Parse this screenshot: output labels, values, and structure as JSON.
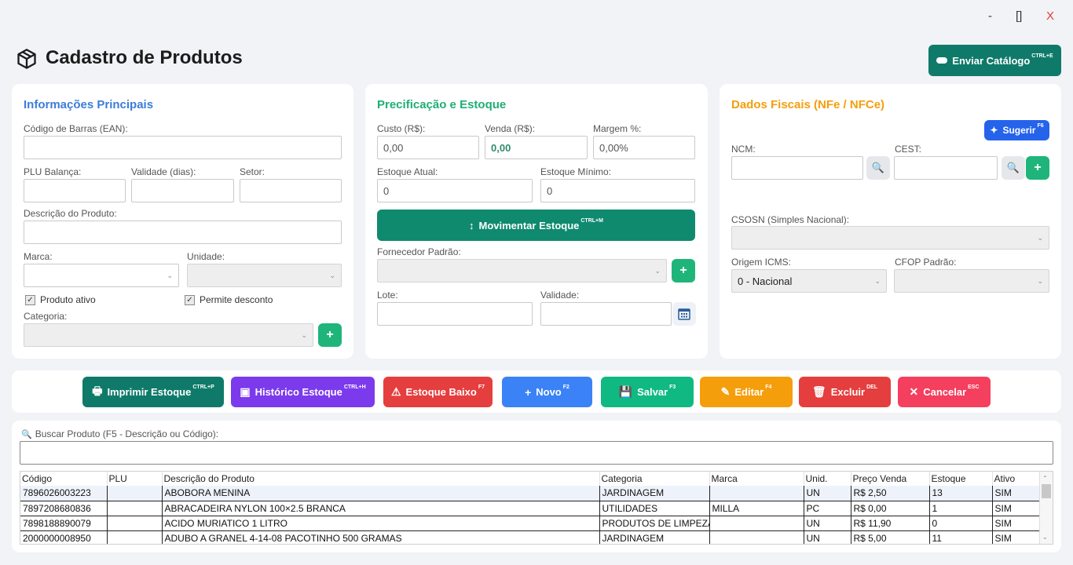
{
  "window": {
    "minimize": "-",
    "maximize": "[]",
    "close": "X"
  },
  "header": {
    "title": "Cadastro de Produtos",
    "icon": "box-icon"
  },
  "catalog_button": {
    "label": "Enviar Catálogo",
    "shortcut": "CTRL+E",
    "color": "#0f7a6a"
  },
  "main_info": {
    "title": "Informações Principais",
    "barcode_label": "Código de Barras (EAN):",
    "barcode_value": "",
    "plu_label": "PLU Balança:",
    "validade_label": "Validade (dias):",
    "setor_label": "Setor:",
    "descricao_label": "Descrição do Produto:",
    "marca_label": "Marca:",
    "unidade_label": "Unidade:",
    "produto_ativo": "Produto ativo",
    "permite_desconto": "Permite desconto",
    "categoria_label": "Categoria:"
  },
  "pricing": {
    "title": "Precificação e Estoque",
    "custo_label": "Custo (R$):",
    "custo_value": "0,00",
    "venda_label": "Venda (R$):",
    "venda_value": "0,00",
    "margem_label": "Margem %:",
    "margem_value": "0,00%",
    "estoque_atual_label": "Estoque Atual:",
    "estoque_atual_value": "0",
    "estoque_minimo_label": "Estoque Mínimo:",
    "estoque_minimo_value": "0",
    "movimentar_label": "Movimentar Estoque",
    "movimentar_shortcut": "CTRL+M",
    "fornecedor_label": "Fornecedor Padrão:",
    "lote_label": "Lote:",
    "validade_label": "Validade:"
  },
  "fiscal": {
    "title": "Dados Fiscais (NFe / NFCe)",
    "sugerir_label": "Sugerir",
    "sugerir_shortcut": "F6",
    "ncm_label": "NCM:",
    "cest_label": "CEST:",
    "csosn_label": "CSOSN (Simples Nacional):",
    "origem_label": "Origem ICMS:",
    "origem_value": "0 - Nacional",
    "cfop_label": "CFOP Padrão:"
  },
  "actions": [
    {
      "label": "Imprimir Estoque",
      "shortcut": "CTRL+P",
      "color": "#0f7a6a",
      "icon": "printer-icon"
    },
    {
      "label": "Histórico Estoque",
      "shortcut": "CTRL+H",
      "color": "#7c3aed",
      "icon": "box-icon"
    },
    {
      "label": "Estoque Baixo",
      "shortcut": "F7",
      "color": "#e53e3e",
      "icon": "warning-icon"
    },
    {
      "label": "Novo",
      "shortcut": "F2",
      "color": "#3b82f6",
      "icon": "plus-icon"
    },
    {
      "label": "Salvar",
      "shortcut": "F3",
      "color": "#10b981",
      "icon": "save-icon"
    },
    {
      "label": "Editar",
      "shortcut": "F4",
      "color": "#f59e0b",
      "icon": "pencil-icon"
    },
    {
      "label": "Excluir",
      "shortcut": "DEL",
      "color": "#e53e3e",
      "icon": "trash-icon"
    },
    {
      "label": "Cancelar",
      "shortcut": "ESC",
      "color": "#f43f5e",
      "icon": "close-icon"
    }
  ],
  "search": {
    "label": "Buscar Produto (F5 - Descrição ou Código):",
    "value": ""
  },
  "table": {
    "columns": [
      "Código",
      "PLU",
      "Descrição do Produto",
      "Categoria",
      "Marca",
      "Unid.",
      "Preço Venda",
      "Estoque",
      "Ativo"
    ],
    "rows": [
      [
        "7896026003223",
        "",
        "ABOBORA MENINA",
        "JARDINAGEM",
        "",
        "UN",
        "R$ 2,50",
        "13",
        "SIM"
      ],
      [
        "7897208680836",
        "",
        "ABRACADEIRA NYLON 100×2.5 BRANCA",
        "UTILIDADES",
        "MILLA",
        "PC",
        "R$ 0,00",
        "1",
        "SIM"
      ],
      [
        "7898188890079",
        "",
        "ACIDO MURIATICO 1 LITRO",
        "PRODUTOS DE LIMPEZA",
        "",
        "UN",
        "R$ 11,90",
        "0",
        "SIM"
      ],
      [
        "2000000008950",
        "",
        "ADUBO A GRANEL 4-14-08 PACOTINHO 500 GRAMAS",
        "JARDINAGEM",
        "",
        "UN",
        "R$ 5,00",
        "11",
        "SIM"
      ]
    ]
  }
}
